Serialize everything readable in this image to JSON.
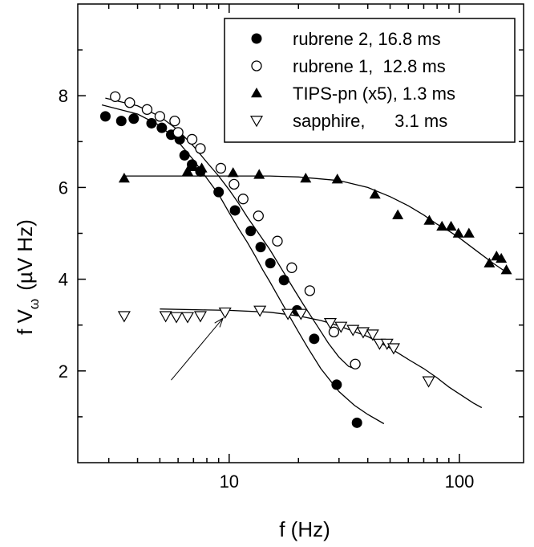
{
  "chart_data": {
    "type": "scatter",
    "title": "",
    "xlabel": "f (Hz)",
    "ylabel_main": "f V",
    "ylabel_sub": "ω",
    "ylabel_unit": "(µV Hz)",
    "x_scale": "log",
    "xlim": [
      2.2,
      190
    ],
    "ylim": [
      0,
      10
    ],
    "x_ticks": [
      10,
      100
    ],
    "x_tick_labels": [
      "10",
      "100"
    ],
    "y_ticks": [
      2,
      4,
      6,
      8
    ],
    "y_tick_labels": [
      "2",
      "4",
      "6",
      "8"
    ],
    "legend_position": "top-right",
    "grid": false,
    "series": [
      {
        "name": "rubrene 2, 16.8 ms",
        "marker": "filled-circle",
        "points": [
          [
            2.9,
            7.55
          ],
          [
            3.4,
            7.45
          ],
          [
            3.85,
            7.5
          ],
          [
            4.6,
            7.4
          ],
          [
            5.1,
            7.3
          ],
          [
            5.6,
            7.15
          ],
          [
            6.1,
            7.05
          ],
          [
            6.4,
            6.7
          ],
          [
            6.9,
            6.5
          ],
          [
            7.5,
            6.35
          ],
          [
            9.0,
            5.9
          ],
          [
            10.6,
            5.5
          ],
          [
            12.4,
            5.05
          ],
          [
            13.7,
            4.7
          ],
          [
            15.1,
            4.35
          ],
          [
            17.3,
            3.98
          ],
          [
            19.7,
            3.32
          ],
          [
            23.4,
            2.7
          ],
          [
            29.3,
            1.7
          ],
          [
            35.9,
            0.87
          ]
        ],
        "fit": [
          [
            2.8,
            7.8
          ],
          [
            4,
            7.6
          ],
          [
            5,
            7.35
          ],
          [
            6,
            7.0
          ],
          [
            7,
            6.6
          ],
          [
            8,
            6.2
          ],
          [
            9,
            5.85
          ],
          [
            10,
            5.45
          ],
          [
            11,
            5.1
          ],
          [
            12,
            4.8
          ],
          [
            13,
            4.5
          ],
          [
            14,
            4.2
          ],
          [
            15,
            3.95
          ],
          [
            16,
            3.7
          ],
          [
            18,
            3.25
          ],
          [
            20,
            2.85
          ],
          [
            22,
            2.5
          ],
          [
            25,
            2.05
          ],
          [
            30,
            1.55
          ],
          [
            35,
            1.25
          ],
          [
            40,
            1.05
          ],
          [
            47,
            0.85
          ]
        ]
      },
      {
        "name": "rubrene 1,  12.8 ms",
        "marker": "open-circle",
        "points": [
          [
            3.2,
            7.98
          ],
          [
            3.7,
            7.85
          ],
          [
            4.4,
            7.7
          ],
          [
            5.0,
            7.55
          ],
          [
            5.8,
            7.45
          ],
          [
            6.0,
            7.2
          ],
          [
            6.9,
            7.05
          ],
          [
            7.5,
            6.85
          ],
          [
            9.2,
            6.42
          ],
          [
            10.5,
            6.07
          ],
          [
            11.5,
            5.75
          ],
          [
            13.4,
            5.38
          ],
          [
            16.2,
            4.83
          ],
          [
            18.7,
            4.25
          ],
          [
            22.4,
            3.75
          ],
          [
            28.5,
            2.85
          ],
          [
            35.3,
            2.15
          ]
        ],
        "fit": [
          [
            2.9,
            7.95
          ],
          [
            4,
            7.78
          ],
          [
            5,
            7.55
          ],
          [
            6,
            7.25
          ],
          [
            7,
            6.9
          ],
          [
            8,
            6.55
          ],
          [
            9,
            6.25
          ],
          [
            10,
            5.95
          ],
          [
            11,
            5.65
          ],
          [
            12,
            5.35
          ],
          [
            13,
            5.1
          ],
          [
            15,
            4.65
          ],
          [
            17,
            4.2
          ],
          [
            19,
            3.8
          ],
          [
            21,
            3.45
          ],
          [
            24,
            3.0
          ],
          [
            27,
            2.6
          ],
          [
            30,
            2.3
          ],
          [
            33,
            2.1
          ],
          [
            35,
            2.05
          ]
        ]
      },
      {
        "name": "TIPS-pn (x5), 1.3 ms",
        "marker": "filled-triangle-up",
        "points": [
          [
            3.5,
            6.2
          ],
          [
            6.6,
            6.35
          ],
          [
            7.0,
            6.45
          ],
          [
            7.6,
            6.42
          ],
          [
            10.4,
            6.32
          ],
          [
            13.5,
            6.28
          ],
          [
            21.5,
            6.2
          ],
          [
            29.5,
            6.18
          ],
          [
            43,
            5.85
          ],
          [
            54,
            5.4
          ],
          [
            74,
            5.28
          ],
          [
            84,
            5.15
          ],
          [
            92,
            5.15
          ],
          [
            99,
            5.0
          ],
          [
            110,
            5.0
          ],
          [
            135,
            4.35
          ],
          [
            145,
            4.5
          ],
          [
            152,
            4.45
          ],
          [
            160,
            4.2
          ]
        ],
        "fit": [
          [
            3.5,
            6.25
          ],
          [
            6,
            6.25
          ],
          [
            10,
            6.25
          ],
          [
            15,
            6.25
          ],
          [
            20,
            6.23
          ],
          [
            30,
            6.15
          ],
          [
            40,
            6.0
          ],
          [
            50,
            5.8
          ],
          [
            60,
            5.6
          ],
          [
            70,
            5.4
          ],
          [
            80,
            5.2
          ],
          [
            90,
            5.05
          ],
          [
            100,
            4.9
          ],
          [
            120,
            4.6
          ],
          [
            140,
            4.35
          ],
          [
            160,
            4.15
          ]
        ]
      },
      {
        "name": "sapphire,      3.1 ms",
        "marker": "open-triangle-down",
        "points": [
          [
            3.5,
            3.2
          ],
          [
            5.3,
            3.2
          ],
          [
            5.9,
            3.18
          ],
          [
            6.6,
            3.18
          ],
          [
            7.5,
            3.2
          ],
          [
            9.6,
            3.28
          ],
          [
            13.6,
            3.32
          ],
          [
            18.0,
            3.25
          ],
          [
            20.5,
            3.25
          ],
          [
            27.5,
            3.05
          ],
          [
            30.6,
            2.97
          ],
          [
            34.5,
            2.9
          ],
          [
            38.2,
            2.85
          ],
          [
            42.0,
            2.8
          ],
          [
            45.0,
            2.6
          ],
          [
            48.5,
            2.6
          ],
          [
            51.8,
            2.5
          ],
          [
            73.5,
            1.78
          ]
        ],
        "fit": [
          [
            5,
            3.35
          ],
          [
            8,
            3.33
          ],
          [
            10,
            3.32
          ],
          [
            15,
            3.28
          ],
          [
            20,
            3.2
          ],
          [
            25,
            3.1
          ],
          [
            30,
            2.98
          ],
          [
            40,
            2.75
          ],
          [
            50,
            2.5
          ],
          [
            60,
            2.25
          ],
          [
            70,
            2.05
          ],
          [
            80,
            1.85
          ],
          [
            90,
            1.65
          ],
          [
            100,
            1.5
          ],
          [
            115,
            1.3
          ],
          [
            125,
            1.2
          ]
        ]
      }
    ],
    "annotation_arrow": {
      "from": [
        5.6,
        1.8
      ],
      "to": [
        9.4,
        3.15
      ]
    }
  }
}
